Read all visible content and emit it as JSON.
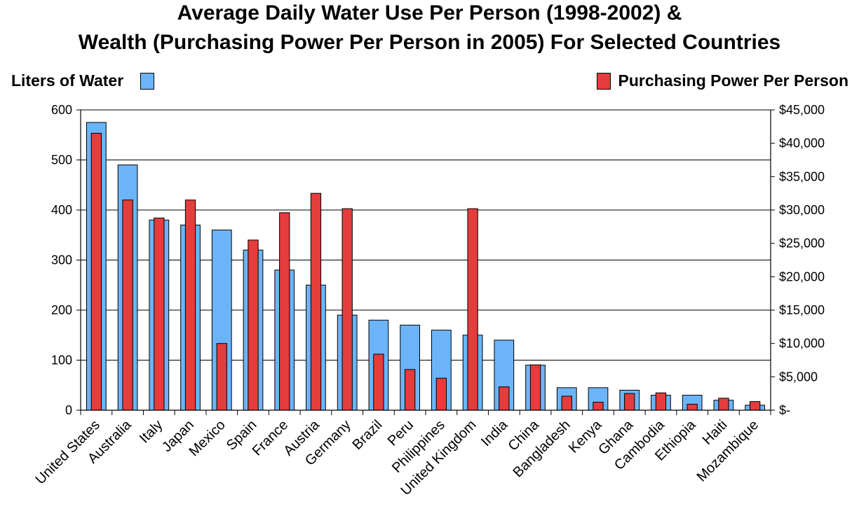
{
  "chart_data": {
    "type": "bar",
    "title_line1": "Average Daily Water Use Per Person (1998-2002) &",
    "title_line2": "Wealth (Purchasing Power Per Person in 2005) For Selected Countries",
    "categories": [
      "United States",
      "Australia",
      "Italy",
      "Japan",
      "Mexico",
      "Spain",
      "France",
      "Austria",
      "Germany",
      "Brazil",
      "Peru",
      "Philippines",
      "United Kingdom",
      "India",
      "China",
      "Bangladesh",
      "Kenya",
      "Ghana",
      "Cambodia",
      "Ethiopia",
      "Haiti",
      "Mozambique"
    ],
    "series": [
      {
        "name": "Liters of Water",
        "axis": "left",
        "color": "#6cb4f8",
        "values": [
          575,
          490,
          380,
          370,
          360,
          320,
          280,
          250,
          190,
          180,
          170,
          160,
          150,
          140,
          90,
          45,
          45,
          40,
          30,
          30,
          20,
          10
        ]
      },
      {
        "name": "Purchasing Power Per Person",
        "axis": "right",
        "color": "#e53c3c",
        "values": [
          41500,
          31500,
          28800,
          31500,
          10000,
          25500,
          29600,
          32500,
          30200,
          8400,
          6100,
          4800,
          30200,
          3500,
          6800,
          2100,
          1200,
          2500,
          2600,
          900,
          1800,
          1300
        ]
      }
    ],
    "left_axis": {
      "ylim": [
        0,
        600
      ],
      "ticks": [
        "0",
        "100",
        "200",
        "300",
        "400",
        "500",
        "600"
      ]
    },
    "right_axis": {
      "ylim": [
        0,
        45000
      ],
      "ticks": [
        "$-",
        "$5,000",
        "$10,000",
        "$15,000",
        "$20,000",
        "$25,000",
        "$30,000",
        "$35,000",
        "$40,000",
        "$45,000"
      ]
    },
    "grid": "horizontal major gridlines at left-axis ticks",
    "legend_placement": "top-left and top-right"
  }
}
